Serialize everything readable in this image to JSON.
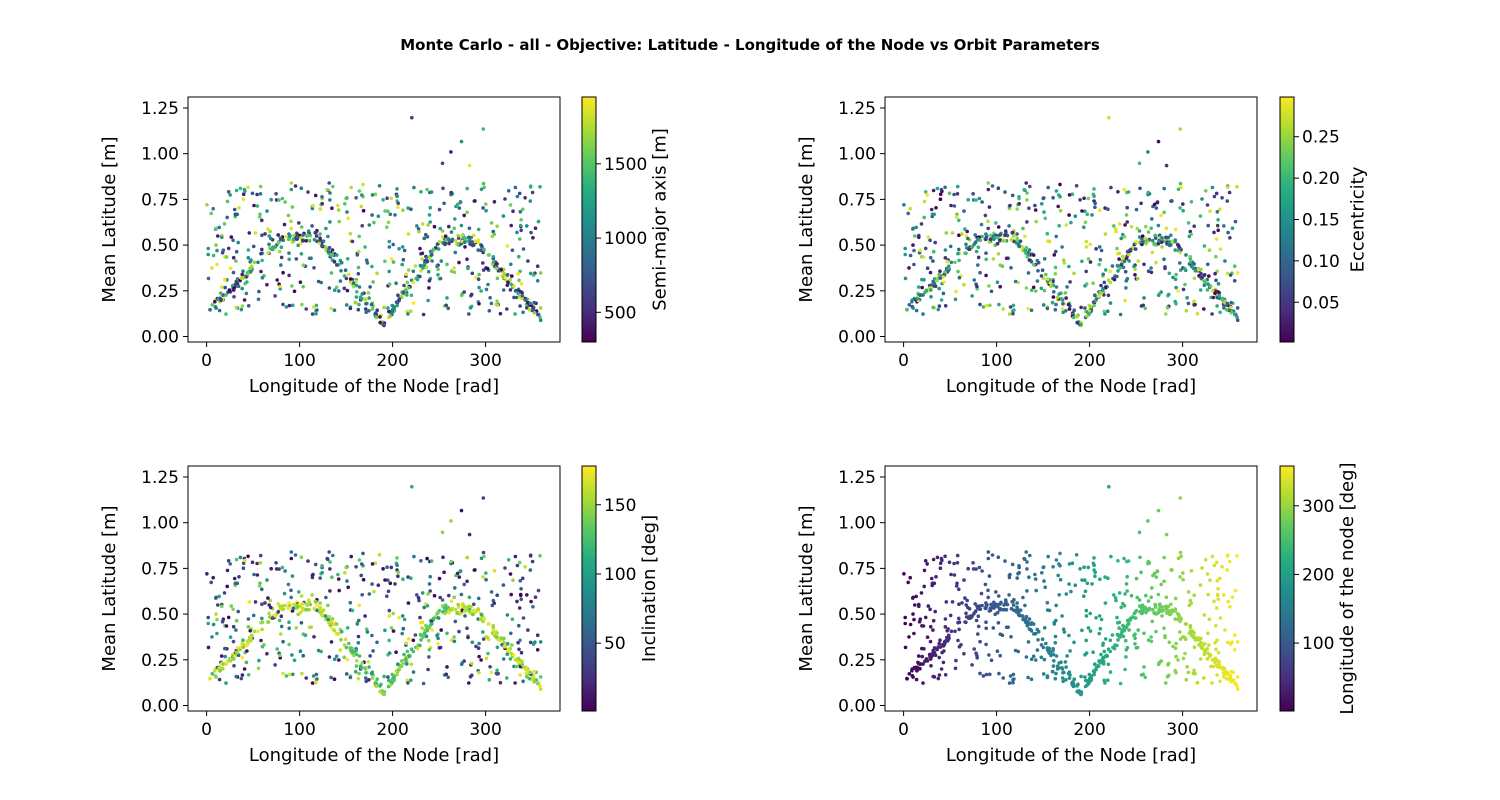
{
  "figure": {
    "title": "Monte Carlo - all - Objective: Latitude - Longitude of the Node vs Orbit Parameters"
  },
  "chart_data": [
    {
      "type": "scatter",
      "xlabel": "Longitude of the Node [rad]",
      "ylabel": "Mean Latitude [m]",
      "xlim": [
        -20,
        380
      ],
      "ylim": [
        -0.03,
        1.31
      ],
      "xticks": [
        "0",
        "100",
        "200",
        "300"
      ],
      "yticks": [
        "0.00",
        "0.25",
        "0.50",
        "0.75",
        "1.00",
        "1.25"
      ],
      "colorbar": {
        "label": "Semi-major axis [m]",
        "range": [
          300,
          1950
        ],
        "ticks": [
          "500",
          "1000",
          "1500"
        ],
        "tick_values": [
          500,
          1000,
          1500
        ]
      },
      "color_variable": "Semi-major axis",
      "colormap": "viridis",
      "n_points_approx": 900,
      "points": []
    },
    {
      "type": "scatter",
      "xlabel": "Longitude of the Node [rad]",
      "ylabel": "Mean Latitude [m]",
      "xlim": [
        -20,
        380
      ],
      "ylim": [
        -0.03,
        1.31
      ],
      "xticks": [
        "0",
        "100",
        "200",
        "300"
      ],
      "yticks": [
        "0.00",
        "0.25",
        "0.50",
        "0.75",
        "1.00",
        "1.25"
      ],
      "colorbar": {
        "label": "Eccentricity",
        "range": [
          0.002,
          0.298
        ],
        "ticks": [
          "0.05",
          "0.10",
          "0.15",
          "0.20",
          "0.25"
        ],
        "tick_values": [
          0.05,
          0.1,
          0.15,
          0.2,
          0.25
        ]
      },
      "color_variable": "Eccentricity",
      "colormap": "viridis",
      "n_points_approx": 900,
      "points": []
    },
    {
      "type": "scatter",
      "xlabel": "Longitude of the Node [rad]",
      "ylabel": "Mean Latitude [m]",
      "xlim": [
        -20,
        380
      ],
      "ylim": [
        -0.03,
        1.31
      ],
      "xticks": [
        "0",
        "100",
        "200",
        "300"
      ],
      "yticks": [
        "0.00",
        "0.25",
        "0.50",
        "0.75",
        "1.00",
        "1.25"
      ],
      "colorbar": {
        "label": "Inclination [deg]",
        "range": [
          1,
          178
        ],
        "ticks": [
          "50",
          "100",
          "150"
        ],
        "tick_values": [
          50,
          100,
          150
        ]
      },
      "color_variable": "Inclination",
      "colormap": "viridis",
      "n_points_approx": 900,
      "points": []
    },
    {
      "type": "scatter",
      "xlabel": "Longitude of the Node [rad]",
      "ylabel": "Mean Latitude [m]",
      "xlim": [
        -20,
        380
      ],
      "ylim": [
        -0.03,
        1.31
      ],
      "xticks": [
        "0",
        "100",
        "200",
        "300"
      ],
      "yticks": [
        "0.00",
        "0.25",
        "0.50",
        "0.75",
        "1.00",
        "1.25"
      ],
      "colorbar": {
        "label": "Longitude of the node [deg]",
        "range": [
          1,
          358
        ],
        "ticks": [
          "100",
          "200",
          "300"
        ],
        "tick_values": [
          100,
          200,
          300
        ]
      },
      "color_variable": "Longitude of the node",
      "colormap": "viridis",
      "n_points_approx": 900,
      "points": []
    }
  ]
}
